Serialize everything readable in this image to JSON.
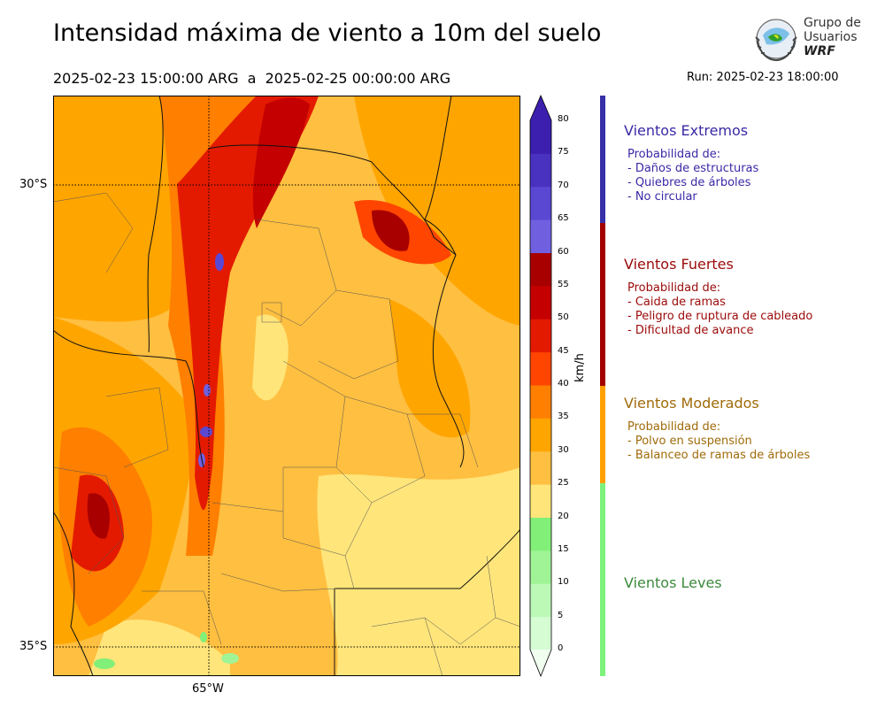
{
  "header": {
    "title": "Intensidad máxima de viento a 10m del suelo",
    "period": "2025-02-23 15:00:00 ARG  a  2025-02-25 00:00:00 ARG",
    "run": "Run: 2025-02-23 18:00:00"
  },
  "logo": {
    "line1": "Grupo de",
    "line2": "Usuarios",
    "line3": "WRF"
  },
  "map": {
    "lat_labels": [
      "30°S",
      "35°S"
    ],
    "lon_labels": [
      "65°W"
    ],
    "graticule_lat": [
      -30,
      -35
    ],
    "graticule_lon": [
      -65
    ]
  },
  "colorbar": {
    "unit": "km/h",
    "ticks": [
      "0",
      "5",
      "10",
      "15",
      "20",
      "25",
      "30",
      "35",
      "40",
      "45",
      "50",
      "55",
      "60",
      "65",
      "70",
      "75",
      "80"
    ],
    "colors": [
      "#f0fff0",
      "#d6fcd4",
      "#bcf8b6",
      "#a0f496",
      "#82ef78",
      "#ffe57a",
      "#ffbf40",
      "#ffa500",
      "#ff7f00",
      "#ff4500",
      "#e41a00",
      "#c40000",
      "#a80000",
      "#7060e0",
      "#5a48d2",
      "#4a32c0",
      "#3c1fae"
    ],
    "extend": "both"
  },
  "categories": [
    {
      "title": "Vientos Extremos",
      "color": "#3a29a6",
      "bar": "#3730a8",
      "lines": [
        "Probabilidad de:",
        "- Daños de estructuras",
        "- Quiebres de árboles",
        "- No circular"
      ]
    },
    {
      "title": "Vientos Fuertes",
      "color": "#9b0a0a",
      "bar": "#a30000",
      "lines": [
        "Probabilidad de:",
        "- Caida de ramas",
        "- Peligro de ruptura de cableado",
        "- Dificultad de avance"
      ]
    },
    {
      "title": "Vientos Moderados",
      "color": "#a06b0a",
      "bar": "#ffa000",
      "lines": [
        "Probabilidad de:",
        "- Polvo en suspensión",
        "- Balanceo de ramas de árboles"
      ]
    },
    {
      "title": "Vientos Leves",
      "color": "#3c8a3c",
      "bar": "#7cf27c",
      "lines": []
    }
  ]
}
